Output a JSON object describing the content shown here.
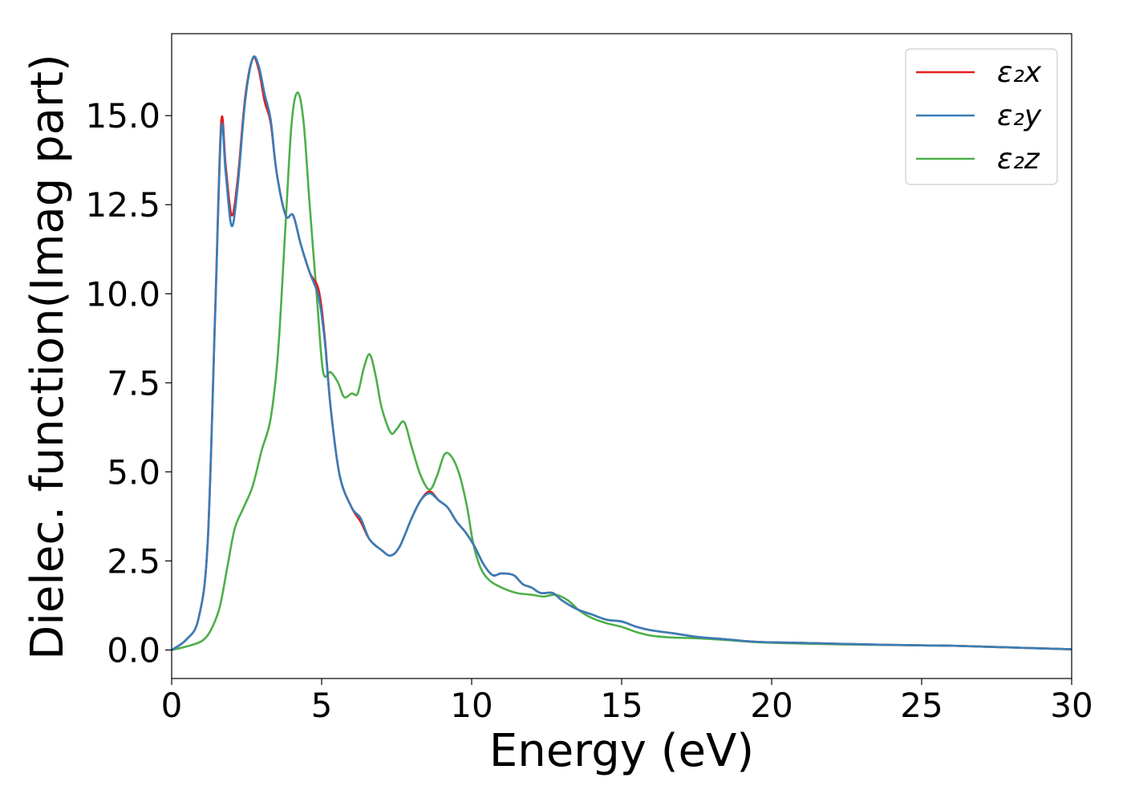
{
  "chart_data": {
    "type": "line",
    "title": "",
    "xlabel": "Energy (eV)",
    "ylabel": "Dielec. function(Imag part)",
    "xlim": [
      0,
      30
    ],
    "ylim": [
      -0.8,
      17.3
    ],
    "xticks": [
      0,
      5,
      10,
      15,
      20,
      25,
      30
    ],
    "yticks": [
      0.0,
      2.5,
      5.0,
      7.5,
      10.0,
      12.5,
      15.0
    ],
    "ytick_labels": [
      "0.0",
      "2.5",
      "5.0",
      "7.5",
      "10.0",
      "12.5",
      "15.0"
    ],
    "grid": false,
    "legend_position": "top-right",
    "series": [
      {
        "name": "ε₂x",
        "color": "#e41a1c",
        "points": [
          [
            0,
            0.0
          ],
          [
            0.5,
            0.3
          ],
          [
            0.9,
            0.9
          ],
          [
            1.2,
            3.0
          ],
          [
            1.45,
            9.5
          ],
          [
            1.65,
            14.8
          ],
          [
            1.8,
            13.6
          ],
          [
            2.0,
            12.2
          ],
          [
            2.2,
            13.2
          ],
          [
            2.45,
            15.5
          ],
          [
            2.7,
            16.6
          ],
          [
            2.9,
            16.3
          ],
          [
            3.1,
            15.4
          ],
          [
            3.3,
            14.8
          ],
          [
            3.5,
            13.4
          ],
          [
            3.8,
            12.2
          ],
          [
            4.05,
            12.2
          ],
          [
            4.3,
            11.4
          ],
          [
            4.6,
            10.6
          ],
          [
            4.9,
            10.1
          ],
          [
            5.1,
            8.8
          ],
          [
            5.3,
            6.8
          ],
          [
            5.6,
            4.9
          ],
          [
            6.0,
            4.0
          ],
          [
            6.3,
            3.6
          ],
          [
            6.6,
            3.1
          ],
          [
            7.0,
            2.8
          ],
          [
            7.3,
            2.65
          ],
          [
            7.6,
            2.9
          ],
          [
            8.0,
            3.7
          ],
          [
            8.3,
            4.2
          ],
          [
            8.6,
            4.45
          ],
          [
            8.9,
            4.2
          ],
          [
            9.2,
            4.0
          ],
          [
            9.5,
            3.6
          ],
          [
            9.8,
            3.3
          ],
          [
            10.1,
            2.9
          ],
          [
            10.4,
            2.4
          ],
          [
            10.7,
            2.1
          ],
          [
            11.0,
            2.15
          ],
          [
            11.4,
            2.1
          ],
          [
            11.7,
            1.85
          ],
          [
            12.0,
            1.75
          ],
          [
            12.3,
            1.6
          ],
          [
            12.7,
            1.6
          ],
          [
            13.0,
            1.4
          ],
          [
            13.5,
            1.15
          ],
          [
            14.0,
            1.0
          ],
          [
            14.5,
            0.85
          ],
          [
            15.0,
            0.8
          ],
          [
            15.5,
            0.65
          ],
          [
            16.0,
            0.55
          ],
          [
            16.7,
            0.47
          ],
          [
            17.5,
            0.37
          ],
          [
            18.5,
            0.3
          ],
          [
            19.5,
            0.23
          ],
          [
            21.0,
            0.2
          ],
          [
            23.0,
            0.16
          ],
          [
            25.0,
            0.13
          ],
          [
            26.0,
            0.12
          ],
          [
            28.0,
            0.07
          ],
          [
            30.0,
            0.02
          ]
        ]
      },
      {
        "name": "ε₂y",
        "color": "#377eb8",
        "points": [
          [
            0,
            0.0
          ],
          [
            0.5,
            0.3
          ],
          [
            0.9,
            0.9
          ],
          [
            1.2,
            3.0
          ],
          [
            1.45,
            9.4
          ],
          [
            1.65,
            14.6
          ],
          [
            1.8,
            13.4
          ],
          [
            2.0,
            11.9
          ],
          [
            2.2,
            13.0
          ],
          [
            2.45,
            15.4
          ],
          [
            2.7,
            16.6
          ],
          [
            2.9,
            16.4
          ],
          [
            3.1,
            15.6
          ],
          [
            3.3,
            14.9
          ],
          [
            3.5,
            13.4
          ],
          [
            3.8,
            12.2
          ],
          [
            4.05,
            12.2
          ],
          [
            4.3,
            11.4
          ],
          [
            4.6,
            10.6
          ],
          [
            4.9,
            9.9
          ],
          [
            5.1,
            8.7
          ],
          [
            5.3,
            6.8
          ],
          [
            5.6,
            4.9
          ],
          [
            6.0,
            4.0
          ],
          [
            6.3,
            3.7
          ],
          [
            6.6,
            3.1
          ],
          [
            7.0,
            2.8
          ],
          [
            7.3,
            2.65
          ],
          [
            7.6,
            2.9
          ],
          [
            8.0,
            3.7
          ],
          [
            8.3,
            4.2
          ],
          [
            8.6,
            4.4
          ],
          [
            8.9,
            4.2
          ],
          [
            9.2,
            4.0
          ],
          [
            9.5,
            3.6
          ],
          [
            9.8,
            3.3
          ],
          [
            10.1,
            2.9
          ],
          [
            10.4,
            2.4
          ],
          [
            10.7,
            2.1
          ],
          [
            11.0,
            2.15
          ],
          [
            11.4,
            2.1
          ],
          [
            11.7,
            1.85
          ],
          [
            12.0,
            1.75
          ],
          [
            12.3,
            1.6
          ],
          [
            12.7,
            1.6
          ],
          [
            13.0,
            1.4
          ],
          [
            13.5,
            1.15
          ],
          [
            14.0,
            1.0
          ],
          [
            14.5,
            0.85
          ],
          [
            15.0,
            0.8
          ],
          [
            15.5,
            0.65
          ],
          [
            16.0,
            0.55
          ],
          [
            16.7,
            0.47
          ],
          [
            17.5,
            0.37
          ],
          [
            18.5,
            0.3
          ],
          [
            19.5,
            0.23
          ],
          [
            21.0,
            0.2
          ],
          [
            23.0,
            0.16
          ],
          [
            25.0,
            0.13
          ],
          [
            26.0,
            0.12
          ],
          [
            28.0,
            0.07
          ],
          [
            30.0,
            0.02
          ]
        ]
      },
      {
        "name": "ε₂z",
        "color": "#4daf4a",
        "points": [
          [
            0,
            0.0
          ],
          [
            0.5,
            0.1
          ],
          [
            1.0,
            0.25
          ],
          [
            1.3,
            0.55
          ],
          [
            1.6,
            1.2
          ],
          [
            1.85,
            2.3
          ],
          [
            2.1,
            3.4
          ],
          [
            2.4,
            4.0
          ],
          [
            2.7,
            4.6
          ],
          [
            3.0,
            5.6
          ],
          [
            3.3,
            6.5
          ],
          [
            3.55,
            8.4
          ],
          [
            3.8,
            12.0
          ],
          [
            4.0,
            14.8
          ],
          [
            4.2,
            15.65
          ],
          [
            4.4,
            14.8
          ],
          [
            4.6,
            12.5
          ],
          [
            4.85,
            9.8
          ],
          [
            5.05,
            7.8
          ],
          [
            5.3,
            7.8
          ],
          [
            5.55,
            7.5
          ],
          [
            5.75,
            7.1
          ],
          [
            6.0,
            7.2
          ],
          [
            6.2,
            7.2
          ],
          [
            6.4,
            7.9
          ],
          [
            6.6,
            8.3
          ],
          [
            6.8,
            7.7
          ],
          [
            7.0,
            6.8
          ],
          [
            7.3,
            6.1
          ],
          [
            7.5,
            6.2
          ],
          [
            7.75,
            6.4
          ],
          [
            8.0,
            5.7
          ],
          [
            8.3,
            4.9
          ],
          [
            8.6,
            4.5
          ],
          [
            8.85,
            4.9
          ],
          [
            9.1,
            5.5
          ],
          [
            9.35,
            5.4
          ],
          [
            9.6,
            4.9
          ],
          [
            9.85,
            4.0
          ],
          [
            10.05,
            3.0
          ],
          [
            10.3,
            2.3
          ],
          [
            10.6,
            1.95
          ],
          [
            11.0,
            1.75
          ],
          [
            11.5,
            1.6
          ],
          [
            12.0,
            1.55
          ],
          [
            12.4,
            1.5
          ],
          [
            12.8,
            1.55
          ],
          [
            13.2,
            1.4
          ],
          [
            13.6,
            1.1
          ],
          [
            14.0,
            0.9
          ],
          [
            14.5,
            0.75
          ],
          [
            15.0,
            0.65
          ],
          [
            15.5,
            0.5
          ],
          [
            16.0,
            0.4
          ],
          [
            16.7,
            0.35
          ],
          [
            17.5,
            0.33
          ],
          [
            18.5,
            0.28
          ],
          [
            19.5,
            0.22
          ],
          [
            21.0,
            0.18
          ],
          [
            23.0,
            0.15
          ],
          [
            25.0,
            0.13
          ],
          [
            26.0,
            0.12
          ],
          [
            28.0,
            0.07
          ],
          [
            30.0,
            0.02
          ]
        ]
      }
    ]
  }
}
